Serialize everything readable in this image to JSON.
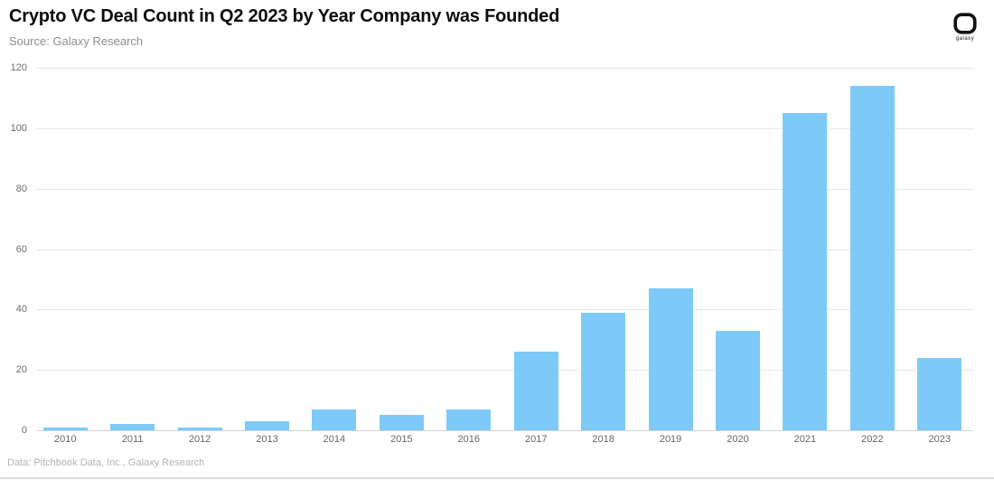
{
  "header": {
    "title": "Crypto VC Deal Count in Q2 2023 by Year Company was Founded",
    "subtitle": "Source: Galaxy Research",
    "logo_label": "galaxy"
  },
  "chart_data": {
    "type": "bar",
    "title": "Crypto VC Deal Count in Q2 2023 by Year Company was Founded",
    "categories": [
      "2010",
      "2011",
      "2012",
      "2013",
      "2014",
      "2015",
      "2016",
      "2017",
      "2018",
      "2019",
      "2020",
      "2021",
      "2022",
      "2023"
    ],
    "values": [
      1,
      2,
      1,
      3,
      7,
      5,
      7,
      26,
      39,
      47,
      33,
      105,
      114,
      24
    ],
    "xlabel": "",
    "ylabel": "",
    "ylim": [
      0,
      120
    ],
    "y_ticks": [
      0,
      20,
      40,
      60,
      80,
      100,
      120
    ],
    "grid": "horizontal",
    "legend": "none",
    "bar_color": "#7dcaf8"
  },
  "footer": {
    "source_note": "Data: Pitchbook Data, Inc., Galaxy Research"
  }
}
